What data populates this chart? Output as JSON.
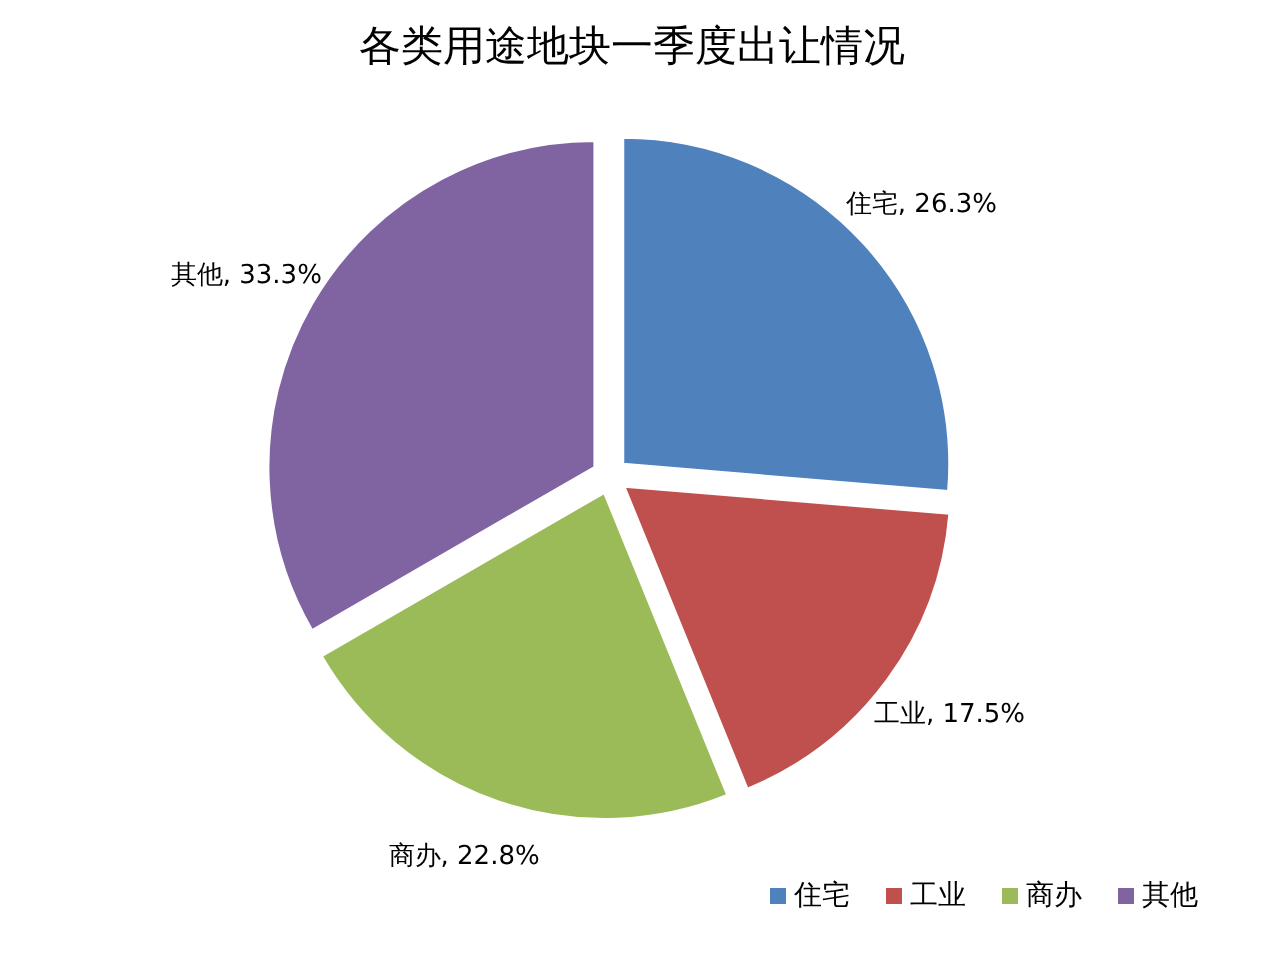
{
  "chart_data": {
    "type": "pie",
    "title": "各类用途地块一季度出让情况",
    "categories": [
      "住宅",
      "工业",
      "商办",
      "其他"
    ],
    "values": [
      26.3,
      17.5,
      22.8,
      33.3
    ],
    "colors": [
      "#4f81bd",
      "#c0504d",
      "#9bbb59",
      "#8064a2"
    ],
    "value_labels": [
      "住宅, 26.3%",
      "工业, 17.5%",
      "商办, 22.8%",
      "其他, 33.3%"
    ],
    "legend": "bottom right"
  }
}
